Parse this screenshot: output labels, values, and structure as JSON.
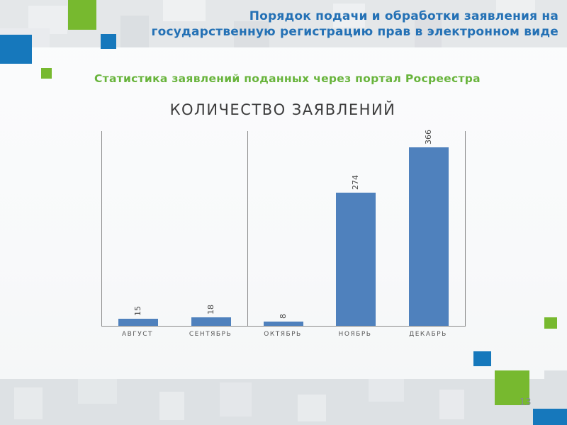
{
  "slide": {
    "title_line1": "Порядок подачи и обработки заявления на",
    "title_line2": "государственную регистрацию прав в электронном виде",
    "subtitle": "Статистика заявлений поданных через портал Росреестра",
    "page_number": "13"
  },
  "colors": {
    "accent_blue": "#1678bc",
    "accent_green": "#77b92f",
    "title_blue": "#2471b5",
    "subtitle_green": "#68b43c",
    "bar_blue": "#4f81bd",
    "axis_gray": "#8a8a8a"
  },
  "chart_data": {
    "type": "bar",
    "title": "КОЛИЧЕСТВО ЗАЯВЛЕНИЙ",
    "categories": [
      "АВГУСТ",
      "СЕНТЯБРЬ",
      "ОКТЯБРЬ",
      "НОЯБРЬ",
      "ДЕКАБРЬ"
    ],
    "values": [
      15,
      18,
      8,
      274,
      366
    ],
    "bar_color": "#4f81bd",
    "value_labels": "rotated-90-bottom-to-top",
    "ylim": [
      0,
      400
    ],
    "grid": false,
    "legend": "none",
    "panel_divider_after_index": 1,
    "xlabel": "",
    "ylabel": ""
  }
}
